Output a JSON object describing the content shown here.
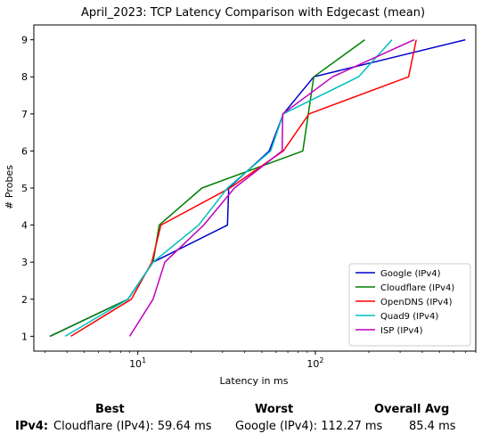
{
  "chart_data": {
    "type": "line",
    "title": "April_2023: TCP Latency Comparison with Edgecast (mean)",
    "xlabel": "Latency in ms",
    "ylabel": "# Probes",
    "xscale": "log",
    "xlim": [
      2.6,
      800
    ],
    "ylim": [
      0.6,
      9.4
    ],
    "xticks": [
      {
        "value": 10,
        "label": "10^1"
      },
      {
        "value": 100,
        "label": "10^2"
      }
    ],
    "yticks": [
      1,
      2,
      3,
      4,
      5,
      6,
      7,
      8,
      9
    ],
    "grid": false,
    "legend_position": "bottom-right",
    "series": [
      {
        "name": "Google (IPv4)",
        "color": "#0000cc",
        "x": [
          3.2,
          8.8,
          12.2,
          32.0,
          32.5,
          55.0,
          66.0,
          98.0,
          700.0
        ],
        "y": [
          1,
          2,
          3,
          4,
          5,
          6,
          7,
          8,
          9
        ]
      },
      {
        "name": "Cloudflare (IPv4)",
        "color": "#008000",
        "x": [
          3.2,
          8.8,
          12.2,
          13.2,
          23.0,
          85.0,
          98.0,
          190.0
        ],
        "y": [
          1,
          2,
          3,
          4,
          5,
          6,
          8,
          9
        ]
      },
      {
        "name": "OpenDNS (IPv4)",
        "color": "#ff0000",
        "x": [
          4.2,
          9.2,
          12.0,
          13.5,
          33.0,
          66.0,
          92.0,
          335.0,
          370.0
        ],
        "y": [
          1,
          2,
          3,
          4,
          5,
          6,
          7,
          8,
          9
        ]
      },
      {
        "name": "Quad9 (IPv4)",
        "color": "#00bfbf",
        "x": [
          3.9,
          8.8,
          12.2,
          22.0,
          32.0,
          56.0,
          66.0,
          175.0,
          270.0
        ],
        "y": [
          1,
          2,
          3,
          4,
          5,
          6,
          7,
          8,
          9
        ]
      },
      {
        "name": "ISP (IPv4)",
        "color": "#bf00bf",
        "x": [
          9.0,
          12.2,
          14.2,
          23.5,
          35.0,
          65.0,
          65.5,
          125.0,
          360.0
        ],
        "y": [
          1,
          2,
          3,
          4,
          5,
          6,
          7,
          8,
          9
        ]
      }
    ]
  },
  "summary": {
    "row_label": "IPv4",
    "best_header": "Best",
    "worst_header": "Worst",
    "avg_header": "Overall Avg",
    "best_value": "Cloudflare (IPv4): 59.64 ms",
    "worst_value": "Google (IPv4): 112.27 ms",
    "avg_value": "85.4 ms"
  }
}
